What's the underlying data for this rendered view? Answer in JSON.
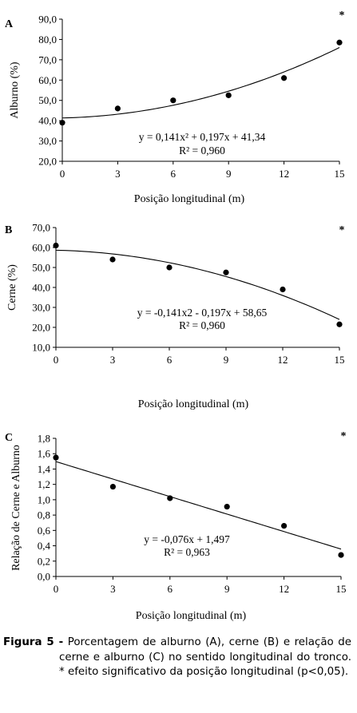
{
  "chart_data": [
    {
      "type": "scatter",
      "panel_letter": "A",
      "significance": "*",
      "x": [
        0,
        3,
        6,
        9,
        12,
        15
      ],
      "y": [
        39.0,
        46.0,
        50.0,
        52.5,
        61.0,
        78.5
      ],
      "xlabel": "Posição longitudinal (m)",
      "ylabel": "Alburno (%)",
      "xlim": [
        0,
        15
      ],
      "ylim": [
        20,
        90
      ],
      "xticks": [
        0,
        3,
        6,
        9,
        12,
        15
      ],
      "xtick_labels": [
        "0",
        "3",
        "6",
        "9",
        "12",
        "15"
      ],
      "yticks": [
        20,
        30,
        40,
        50,
        60,
        70,
        80,
        90
      ],
      "ytick_labels": [
        "20,0",
        "30,0",
        "40,0",
        "50,0",
        "60,0",
        "70,0",
        "80,0",
        "90,0"
      ],
      "trend": {
        "a": 0.141,
        "b": 0.197,
        "c": 41.34
      },
      "equation": "y = 0,141x² + 0,197x + 41,34",
      "r2": "R² = 0,960",
      "grid": false
    },
    {
      "type": "scatter",
      "panel_letter": "B",
      "significance": "*",
      "x": [
        0,
        3,
        6,
        9,
        12,
        15
      ],
      "y": [
        61.0,
        54.0,
        50.0,
        47.5,
        39.0,
        21.5
      ],
      "xlabel": "Posição longitudinal (m)",
      "ylabel": "Cerne (%)",
      "xlim": [
        0,
        15
      ],
      "ylim": [
        10,
        70
      ],
      "xticks": [
        0,
        3,
        6,
        9,
        12,
        15
      ],
      "xtick_labels": [
        "0",
        "3",
        "6",
        "9",
        "12",
        "15"
      ],
      "yticks": [
        10,
        20,
        30,
        40,
        50,
        60,
        70
      ],
      "ytick_labels": [
        "10,0",
        "20,0",
        "30,0",
        "40,0",
        "50,0",
        "60,0",
        "70,0"
      ],
      "trend": {
        "a": -0.141,
        "b": -0.197,
        "c": 58.65
      },
      "equation": "y = -0,141x2 - 0,197x + 58,65",
      "r2": "R² = 0,960",
      "grid": false
    },
    {
      "type": "scatter",
      "panel_letter": "C",
      "significance": "*",
      "x": [
        0,
        3,
        6,
        9,
        12,
        15
      ],
      "y": [
        1.55,
        1.17,
        1.02,
        0.91,
        0.66,
        0.28
      ],
      "xlabel": "Posição longitudinal (m)",
      "ylabel": "Relação de Cerne e Alburno",
      "xlim": [
        0,
        15
      ],
      "ylim": [
        0,
        1.8
      ],
      "xticks": [
        0,
        3,
        6,
        9,
        12,
        15
      ],
      "xtick_labels": [
        "0",
        "3",
        "6",
        "9",
        "12",
        "15"
      ],
      "yticks": [
        0,
        0.2,
        0.4,
        0.6,
        0.8,
        1.0,
        1.2,
        1.4,
        1.6,
        1.8
      ],
      "ytick_labels": [
        "0,0",
        "0,2",
        "0,4",
        "0,6",
        "0,8",
        "1,0",
        "1,2",
        "1,4",
        "1,6",
        "1,8"
      ],
      "trend": {
        "a": 0,
        "b": -0.076,
        "c": 1.497
      },
      "equation": "y = -0,076x + 1,497",
      "r2": "R² = 0,963",
      "grid": false
    }
  ],
  "caption": {
    "label": "Figura 5 -",
    "text": " Porcentagem de alburno (A), cerne (B) e relação de cerne e alburno (C) no sentido longitudinal do tronco. * efeito significativo da posição longitudinal (p<0,05)."
  }
}
